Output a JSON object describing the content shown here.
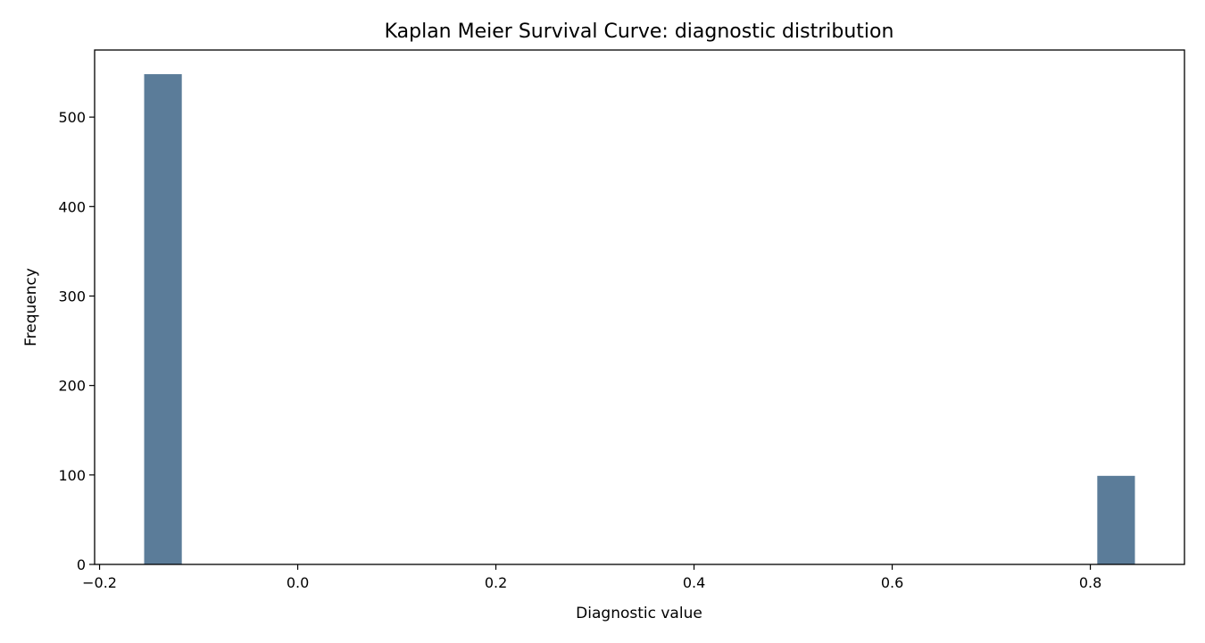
{
  "chart_data": {
    "type": "bar",
    "title": "Kaplan Meier Survival Curve: diagnostic distribution",
    "xlabel": "Diagnostic value",
    "ylabel": "Frequency",
    "xlim": [
      -0.205,
      0.895
    ],
    "ylim": [
      0,
      575
    ],
    "xticks": [
      -0.2,
      0.0,
      0.2,
      0.4,
      0.6,
      0.8
    ],
    "xtick_labels": [
      "−0.2",
      "0.0",
      "0.2",
      "0.4",
      "0.6",
      "0.8"
    ],
    "yticks": [
      0,
      100,
      200,
      300,
      400,
      500
    ],
    "ytick_labels": [
      "0",
      "100",
      "200",
      "300",
      "400",
      "500"
    ],
    "bins": [
      {
        "x0": -0.155,
        "x1": -0.117,
        "value": 548
      },
      {
        "x0": 0.807,
        "x1": 0.845,
        "value": 99
      }
    ],
    "bar_color": "#5b7c99",
    "grid": false,
    "legend": "none"
  }
}
